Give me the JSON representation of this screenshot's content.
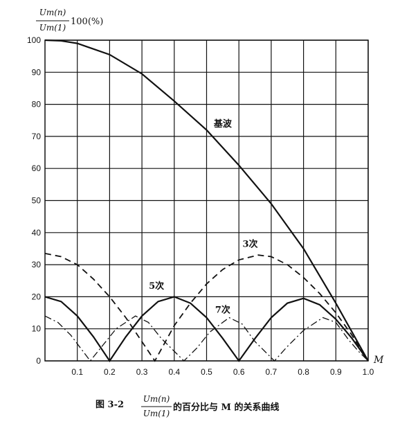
{
  "chart_data": {
    "type": "line",
    "title": {
      "label": "图 3-2",
      "numerator": "Um(n)",
      "denominator": "Um(1)",
      "text": "的百分比与 M 的关系曲线"
    },
    "y_label": {
      "numerator": "Um(n)",
      "denominator": "Um(1)",
      "text": "100(%)"
    },
    "x_label": "M",
    "xlim": [
      0,
      1.0
    ],
    "ylim": [
      0,
      100
    ],
    "xticks": [
      0.1,
      0.2,
      0.3,
      0.4,
      0.5,
      0.6,
      0.7,
      0.8,
      0.9,
      {
        "value": 1,
        "label": "1.0"
      }
    ],
    "yticks": [
      0,
      10,
      20,
      30,
      40,
      50,
      60,
      70,
      80,
      90,
      100
    ],
    "grid": true,
    "series": [
      {
        "name": "基波",
        "color": "#111111",
        "dash": "solid",
        "x": [
          0,
          0.05,
          0.1,
          0.2,
          0.3,
          0.4,
          0.5,
          0.6,
          0.7,
          0.8,
          0.9,
          0.95,
          1.0
        ],
        "values": [
          100,
          99.8,
          99,
          95.5,
          89.5,
          81,
          72,
          61,
          49,
          35,
          18,
          9,
          0
        ]
      },
      {
        "name": "3次",
        "color": "#111111",
        "dash": "dashed",
        "x": [
          0,
          0.05,
          0.1,
          0.15,
          0.2,
          0.25,
          0.3,
          0.34,
          0.4,
          0.45,
          0.5,
          0.55,
          0.6,
          0.66,
          0.7,
          0.75,
          0.8,
          0.85,
          0.9,
          0.95,
          1.0
        ],
        "values": [
          33.5,
          32.5,
          30,
          25.5,
          20,
          13.5,
          6,
          0,
          11,
          18,
          24,
          28.5,
          31.5,
          33,
          32.5,
          30,
          26,
          21,
          15,
          8,
          0
        ]
      },
      {
        "name": "5次",
        "color": "#111111",
        "dash": "solid",
        "x": [
          0,
          0.05,
          0.1,
          0.15,
          0.2,
          0.25,
          0.3,
          0.35,
          0.4,
          0.45,
          0.5,
          0.55,
          0.6,
          0.65,
          0.7,
          0.75,
          0.8,
          0.85,
          0.9,
          0.95,
          1.0
        ],
        "values": [
          20,
          18.5,
          14,
          7.5,
          0,
          7.5,
          14,
          18.5,
          20,
          18,
          13.5,
          7,
          0,
          7,
          13.5,
          18,
          19.5,
          17.5,
          13,
          7,
          0
        ]
      },
      {
        "name": "7次",
        "color": "#111111",
        "dash": "dashdot",
        "x": [
          0,
          0.04,
          0.08,
          0.11,
          0.14,
          0.18,
          0.22,
          0.28,
          0.32,
          0.36,
          0.4,
          0.43,
          0.47,
          0.51,
          0.57,
          0.61,
          0.65,
          0.68,
          0.71,
          0.75,
          0.8,
          0.86,
          0.9,
          0.94,
          0.97,
          1.0
        ],
        "values": [
          14,
          12,
          8,
          4,
          0,
          5,
          10,
          14,
          12,
          7,
          3,
          0,
          4,
          9,
          13.5,
          11.5,
          6,
          3,
          0,
          4.5,
          9.5,
          13.5,
          12,
          6.5,
          3,
          0
        ]
      }
    ]
  }
}
